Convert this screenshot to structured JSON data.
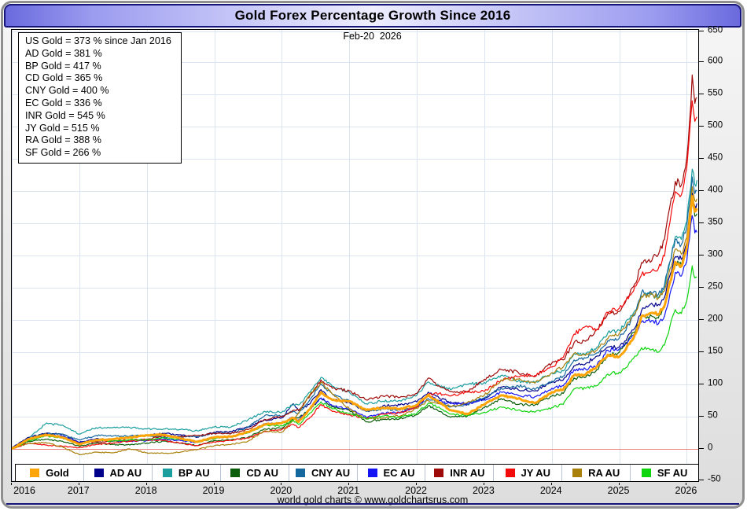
{
  "window": {
    "title": "Gold Forex Percentage Growth Since 2016"
  },
  "header": {
    "date_label": "Feb-20  2026"
  },
  "info_box": {
    "lines": [
      "US Gold = 373 % since Jan 2016",
      "AD Gold = 381 %",
      "BP Gold = 417 %",
      "CD Gold = 365 %",
      "CNY Gold = 400 %",
      "EC Gold = 336 %",
      "INR Gold = 545 %",
      "JY Gold = 515 %",
      "RA Gold = 388 %",
      "SF Gold = 266 %"
    ]
  },
  "footer": {
    "credit": "world gold charts © www.goldchartsrus.com"
  },
  "colors": {
    "grid": "#dbe5f2",
    "zero_line": "#e87f7f",
    "title_border": "#16167a",
    "plot_border": "#000000"
  },
  "chart_data": {
    "type": "line",
    "title": "Gold Forex Percentage Growth Since 2016",
    "xlabel": "",
    "ylabel": "%",
    "legend_position": "bottom",
    "x_axis": {
      "ticks": [
        2016,
        2017,
        2018,
        2019,
        2020,
        2021,
        2022,
        2023,
        2024,
        2025,
        2026
      ],
      "range": [
        2016,
        2026.17
      ]
    },
    "y_axis": {
      "ticks": [
        650,
        600,
        550,
        500,
        450,
        400,
        350,
        300,
        250,
        200,
        150,
        100,
        50,
        0,
        -50
      ],
      "range": [
        -50,
        650
      ]
    },
    "x": [
      2016.0,
      2016.25,
      2016.5,
      2016.75,
      2017.0,
      2017.25,
      2017.5,
      2017.75,
      2018.0,
      2018.25,
      2018.5,
      2018.75,
      2019.0,
      2019.25,
      2019.5,
      2019.75,
      2020.0,
      2020.17,
      2020.25,
      2020.42,
      2020.58,
      2020.75,
      2021.0,
      2021.25,
      2021.5,
      2021.75,
      2022.0,
      2022.17,
      2022.33,
      2022.5,
      2022.75,
      2023.0,
      2023.25,
      2023.5,
      2023.75,
      2024.0,
      2024.17,
      2024.33,
      2024.5,
      2024.67,
      2024.83,
      2025.0,
      2025.08,
      2025.17,
      2025.25,
      2025.33,
      2025.42,
      2025.5,
      2025.58,
      2025.67,
      2025.75,
      2025.83,
      2025.92,
      2026.0,
      2026.04,
      2026.08,
      2026.12,
      2026.15
    ],
    "series": [
      {
        "name": "Gold",
        "color": "#fca408",
        "width": 3,
        "values": [
          0,
          15,
          22,
          18,
          7,
          14,
          15,
          18,
          21,
          22,
          16,
          11,
          18,
          19,
          26,
          38,
          40,
          48,
          42,
          62,
          88,
          76,
          74,
          60,
          64,
          62,
          68,
          84,
          72,
          60,
          54,
          69,
          83,
          78,
          71,
          88,
          92,
          114,
          115,
          128,
          146,
          143,
          152,
          167,
          180,
          206,
          208,
          211,
          209,
          222,
          258,
          290,
          283,
          312,
          348,
          392,
          368,
          373
        ]
      },
      {
        "name": "AD AU",
        "color": "#00008b",
        "width": 1.2,
        "values": [
          2,
          18,
          24,
          23,
          10,
          16,
          15,
          18,
          21,
          24,
          22,
          18,
          26,
          27,
          34,
          45,
          48,
          70,
          59,
          70,
          92,
          76,
          72,
          58,
          67,
          68,
          73,
          88,
          79,
          73,
          69,
          77,
          96,
          92,
          90,
          103,
          107,
          129,
          132,
          144,
          158,
          158,
          167,
          180,
          191,
          215,
          220,
          223,
          224,
          235,
          269,
          298,
          294,
          320,
          357,
          397,
          377,
          381
        ]
      },
      {
        "name": "BP AU",
        "color": "#1b9e9e",
        "width": 1.2,
        "values": [
          0,
          16,
          39,
          37,
          23,
          33,
          33,
          33,
          31,
          31,
          30,
          28,
          34,
          34,
          45,
          58,
          57,
          69,
          68,
          88,
          111,
          97,
          88,
          70,
          74,
          75,
          83,
          104,
          98,
          92,
          100,
          103,
          114,
          105,
          103,
          118,
          121,
          148,
          147,
          158,
          180,
          184,
          192,
          207,
          216,
          237,
          239,
          239,
          234,
          251,
          290,
          329,
          325,
          353,
          393,
          434,
          410,
          417
        ]
      },
      {
        "name": "CD AU",
        "color": "#0b5e0b",
        "width": 1.2,
        "values": [
          0,
          12,
          15,
          12,
          4,
          9,
          7,
          6,
          9,
          12,
          9,
          5,
          13,
          14,
          18,
          31,
          32,
          47,
          48,
          62,
          79,
          65,
          60,
          42,
          46,
          47,
          53,
          67,
          58,
          49,
          51,
          64,
          78,
          69,
          68,
          82,
          86,
          110,
          111,
          123,
          146,
          150,
          160,
          175,
          186,
          206,
          205,
          205,
          203,
          219,
          254,
          290,
          285,
          312,
          343,
          385,
          361,
          365
        ]
      },
      {
        "name": "CNY AU",
        "color": "#15689e",
        "width": 1.2,
        "values": [
          0,
          16,
          24,
          23,
          14,
          21,
          20,
          20,
          21,
          18,
          19,
          19,
          25,
          24,
          34,
          52,
          51,
          58,
          55,
          77,
          101,
          85,
          74,
          58,
          62,
          60,
          65,
          78,
          72,
          65,
          69,
          79,
          94,
          98,
          92,
          105,
          113,
          138,
          141,
          149,
          168,
          172,
          182,
          199,
          214,
          243,
          242,
          242,
          240,
          254,
          290,
          325,
          317,
          345,
          379,
          422,
          396,
          400
        ]
      },
      {
        "name": "EC AU",
        "color": "#1414f5",
        "width": 1.2,
        "values": [
          0,
          14,
          22,
          20,
          10,
          15,
          12,
          12,
          13,
          15,
          13,
          10,
          17,
          19,
          26,
          39,
          40,
          49,
          45,
          62,
          79,
          67,
          62,
          49,
          56,
          56,
          65,
          82,
          75,
          70,
          71,
          76,
          88,
          83,
          81,
          94,
          98,
          123,
          124,
          130,
          153,
          155,
          162,
          172,
          180,
          197,
          199,
          199,
          194,
          206,
          240,
          274,
          268,
          291,
          326,
          362,
          335,
          336
        ]
      },
      {
        "name": "INR AU",
        "color": "#9e0a0a",
        "width": 1.2,
        "values": [
          0,
          15,
          23,
          18,
          9,
          11,
          12,
          14,
          15,
          20,
          19,
          21,
          24,
          24,
          30,
          46,
          50,
          60,
          60,
          83,
          107,
          94,
          90,
          76,
          82,
          80,
          86,
          110,
          98,
          89,
          88,
          108,
          123,
          119,
          112,
          133,
          138,
          165,
          167,
          185,
          210,
          213,
          225,
          247,
          258,
          289,
          291,
          298,
          302,
          325,
          376,
          415,
          409,
          452,
          505,
          580,
          536,
          545
        ]
      },
      {
        "name": "JY AU",
        "color": "#f50a0a",
        "width": 1.2,
        "values": [
          0,
          9,
          6,
          4,
          2,
          7,
          9,
          12,
          14,
          13,
          9,
          5,
          11,
          13,
          17,
          27,
          30,
          38,
          33,
          49,
          69,
          58,
          53,
          47,
          54,
          56,
          65,
          84,
          86,
          82,
          89,
          89,
          107,
          112,
          114,
          127,
          142,
          178,
          190,
          185,
          212,
          218,
          228,
          239,
          253,
          270,
          273,
          279,
          280,
          299,
          351,
          399,
          394,
          436,
          487,
          540,
          508,
          515
        ]
      },
      {
        "name": "RA AU",
        "color": "#a8800a",
        "width": 1.2,
        "values": [
          0,
          9,
          10,
          3,
          -9,
          -5,
          -6,
          0,
          -6,
          -7,
          -5,
          -1,
          5,
          7,
          12,
          28,
          26,
          44,
          56,
          85,
          103,
          85,
          62,
          46,
          48,
          51,
          63,
          75,
          70,
          66,
          72,
          83,
          107,
          108,
          102,
          118,
          127,
          148,
          145,
          153,
          171,
          179,
          187,
          202,
          214,
          237,
          239,
          239,
          234,
          245,
          279,
          310,
          302,
          328,
          366,
          407,
          385,
          388
        ]
      },
      {
        "name": "SF AU",
        "color": "#0fd50f",
        "width": 1.2,
        "values": [
          0,
          13,
          20,
          17,
          8,
          14,
          12,
          14,
          14,
          17,
          15,
          11,
          16,
          19,
          25,
          37,
          36,
          44,
          38,
          56,
          73,
          62,
          55,
          47,
          51,
          49,
          55,
          71,
          65,
          54,
          52,
          57,
          65,
          60,
          57,
          64,
          69,
          93,
          94,
          98,
          116,
          119,
          124,
          135,
          144,
          157,
          156,
          155,
          150,
          161,
          190,
          216,
          210,
          230,
          254,
          284,
          265,
          266
        ]
      }
    ]
  }
}
